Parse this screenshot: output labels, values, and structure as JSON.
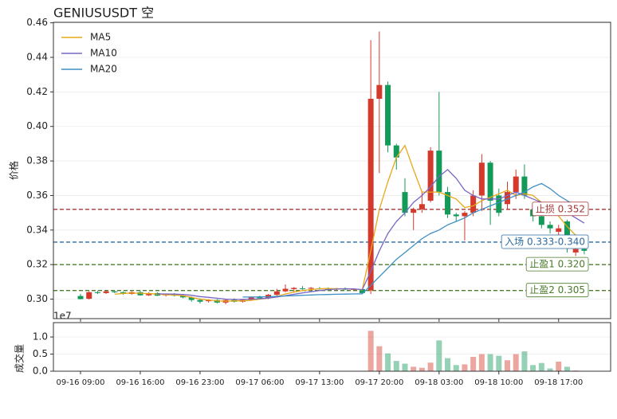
{
  "chart_data": {
    "type": "candlestick",
    "title": "GENIUSUSDT  空",
    "y_label": "价格",
    "volume_label": "成交量",
    "volume_offset_label": "1e7",
    "up_color": "#d33a2c",
    "down_color": "#139a58",
    "grid": true,
    "legend_position": "upper left",
    "categories": [
      "09-16 09:00",
      null,
      null,
      null,
      null,
      null,
      null,
      "09-16 16:00",
      null,
      null,
      null,
      null,
      null,
      null,
      "09-16 23:00",
      null,
      null,
      null,
      null,
      null,
      null,
      "09-17 06:00",
      null,
      null,
      null,
      null,
      null,
      null,
      "09-17 13:00",
      null,
      null,
      null,
      null,
      null,
      null,
      "09-17 20:00",
      null,
      null,
      null,
      null,
      null,
      null,
      "09-18 03:00",
      null,
      null,
      null,
      null,
      null,
      null,
      "09-18 10:00",
      null,
      null,
      null,
      null,
      null,
      null,
      "09-18 17:00",
      null,
      null,
      null
    ],
    "open": [
      0.3018,
      0.3002,
      0.304,
      0.3035,
      0.3045,
      0.304,
      0.303,
      0.304,
      0.3022,
      0.3035,
      0.3022,
      0.303,
      0.302,
      0.301,
      0.2995,
      0.2988,
      0.2995,
      0.298,
      0.2995,
      0.2985,
      0.2995,
      0.301,
      0.3005,
      0.3025,
      0.3045,
      0.3058,
      0.3062,
      0.306,
      0.3062,
      0.306,
      0.3058,
      0.306,
      0.3055,
      0.3058,
      0.305,
      0.416,
      0.424,
      0.389,
      0.362,
      0.35,
      0.352,
      0.357,
      0.386,
      0.362,
      0.349,
      0.348,
      0.35,
      0.36,
      0.379,
      0.36,
      0.355,
      0.362,
      0.371,
      0.352,
      0.348,
      0.343,
      0.339,
      0.345,
      0.327,
      0.329
    ],
    "high": [
      0.303,
      0.3045,
      0.3048,
      0.305,
      0.305,
      0.3045,
      0.3045,
      0.3048,
      0.304,
      0.304,
      0.3032,
      0.3035,
      0.3025,
      0.3015,
      0.3005,
      0.3,
      0.3,
      0.3,
      0.3005,
      0.3,
      0.3015,
      0.302,
      0.303,
      0.306,
      0.3085,
      0.307,
      0.3075,
      0.307,
      0.307,
      0.3068,
      0.3065,
      0.3068,
      0.3062,
      0.306,
      0.45,
      0.455,
      0.426,
      0.39,
      0.37,
      0.353,
      0.362,
      0.388,
      0.42,
      0.365,
      0.35,
      0.351,
      0.363,
      0.384,
      0.38,
      0.364,
      0.368,
      0.375,
      0.378,
      0.356,
      0.35,
      0.345,
      0.343,
      0.346,
      0.331,
      0.33
    ],
    "low": [
      0.2998,
      0.2998,
      0.303,
      0.303,
      0.3035,
      0.3025,
      0.3025,
      0.302,
      0.3018,
      0.3018,
      0.3015,
      0.3015,
      0.3005,
      0.2985,
      0.2975,
      0.298,
      0.2975,
      0.297,
      0.298,
      0.298,
      0.299,
      0.3,
      0.3,
      0.3015,
      0.304,
      0.304,
      0.3055,
      0.305,
      0.3055,
      0.3052,
      0.305,
      0.3052,
      0.305,
      0.303,
      0.303,
      0.373,
      0.385,
      0.375,
      0.348,
      0.34,
      0.35,
      0.356,
      0.36,
      0.347,
      0.345,
      0.334,
      0.348,
      0.351,
      0.343,
      0.348,
      0.352,
      0.358,
      0.358,
      0.345,
      0.341,
      0.338,
      0.336,
      0.327,
      0.325,
      0.326
    ],
    "close": [
      0.3,
      0.304,
      0.3035,
      0.3045,
      0.304,
      0.303,
      0.304,
      0.3022,
      0.3035,
      0.302,
      0.303,
      0.302,
      0.301,
      0.2995,
      0.2985,
      0.2995,
      0.298,
      0.2995,
      0.2985,
      0.2995,
      0.301,
      0.3005,
      0.3025,
      0.3045,
      0.306,
      0.3065,
      0.306,
      0.3065,
      0.306,
      0.3058,
      0.306,
      0.3055,
      0.3058,
      0.3035,
      0.416,
      0.424,
      0.389,
      0.382,
      0.35,
      0.352,
      0.355,
      0.386,
      0.362,
      0.349,
      0.348,
      0.35,
      0.36,
      0.379,
      0.357,
      0.35,
      0.362,
      0.371,
      0.36,
      0.348,
      0.343,
      0.341,
      0.341,
      0.331,
      0.329,
      0.328
    ],
    "volume": [
      0.006,
      0.005,
      0.004,
      0.004,
      0.005,
      0.004,
      0.004,
      0.005,
      0.004,
      0.004,
      0.004,
      0.004,
      0.005,
      0.006,
      0.006,
      0.005,
      0.005,
      0.005,
      0.004,
      0.004,
      0.005,
      0.004,
      0.005,
      0.007,
      0.008,
      0.006,
      0.005,
      0.004,
      0.004,
      0.004,
      0.004,
      0.004,
      0.004,
      0.006,
      1.18,
      0.73,
      0.52,
      0.3,
      0.22,
      0.13,
      0.1,
      0.25,
      0.9,
      0.38,
      0.18,
      0.2,
      0.42,
      0.5,
      0.5,
      0.45,
      0.32,
      0.5,
      0.58,
      0.18,
      0.24,
      0.08,
      0.28,
      0.13,
      0.02,
      0.01
    ],
    "series": [
      {
        "name": "MA5",
        "color": "#e6a817",
        "values": [
          null,
          null,
          null,
          null,
          0.3028,
          0.3033,
          0.3035,
          0.3034,
          0.3032,
          0.3029,
          0.3025,
          0.3024,
          0.302,
          0.301,
          0.3,
          0.2995,
          0.299,
          0.2988,
          0.299,
          0.299,
          0.2993,
          0.3,
          0.3005,
          0.3015,
          0.303,
          0.304,
          0.305,
          0.3055,
          0.306,
          0.3062,
          0.306,
          0.306,
          0.3058,
          0.3053,
          0.328,
          0.352,
          0.368,
          0.382,
          0.389,
          0.375,
          0.362,
          0.362,
          0.362,
          0.36,
          0.358,
          0.353,
          0.354,
          0.357,
          0.359,
          0.361,
          0.363,
          0.36,
          0.361,
          0.36,
          0.356,
          0.352,
          0.348,
          0.342,
          0.337,
          0.334
        ]
      },
      {
        "name": "MA10",
        "color": "#7866c6",
        "values": [
          null,
          null,
          null,
          null,
          null,
          null,
          null,
          null,
          null,
          0.303,
          0.303,
          0.3029,
          0.3027,
          0.3022,
          0.3015,
          0.301,
          0.3005,
          0.3,
          0.2998,
          0.2998,
          0.3,
          0.3002,
          0.3006,
          0.3012,
          0.302,
          0.3028,
          0.3036,
          0.3043,
          0.305,
          0.3055,
          0.3058,
          0.306,
          0.3059,
          0.3055,
          0.316,
          0.328,
          0.338,
          0.345,
          0.35,
          0.356,
          0.36,
          0.365,
          0.371,
          0.375,
          0.37,
          0.363,
          0.36,
          0.358,
          0.358,
          0.358,
          0.36,
          0.362,
          0.36,
          0.358,
          0.356,
          0.354,
          0.352,
          0.35,
          0.347,
          0.344
        ]
      },
      {
        "name": "MA20",
        "color": "#3d8fc6",
        "values": [
          null,
          null,
          null,
          null,
          null,
          null,
          null,
          null,
          null,
          null,
          null,
          null,
          null,
          null,
          null,
          null,
          null,
          null,
          null,
          0.3012,
          0.3012,
          0.3013,
          0.3014,
          0.3016,
          0.3018,
          0.302,
          0.3022,
          0.3024,
          0.3026,
          0.3027,
          0.3028,
          0.3029,
          0.303,
          0.3031,
          0.308,
          0.313,
          0.318,
          0.323,
          0.327,
          0.331,
          0.335,
          0.338,
          0.34,
          0.343,
          0.345,
          0.347,
          0.35,
          0.352,
          0.354,
          0.356,
          0.358,
          0.36,
          0.362,
          0.365,
          0.367,
          0.364,
          0.36,
          0.357,
          0.354,
          0.351
        ]
      }
    ],
    "levels": [
      {
        "label": "止损 0.352",
        "value": 0.352,
        "color": "#a83636"
      },
      {
        "label": "入场 0.333-0.340",
        "value": 0.333,
        "color": "#2c6aa0"
      },
      {
        "label": "止盈1 0.320",
        "value": 0.32,
        "color": "#4b7a2a"
      },
      {
        "label": "止盈2 0.305",
        "value": 0.305,
        "color": "#4b7a2a"
      }
    ],
    "ylim": [
      0.2887,
      0.4603
    ],
    "yticks": [
      {
        "value": 0.3,
        "label": "0.30"
      },
      0.32,
      0.34,
      0.36,
      0.38,
      {
        "value": 0.4,
        "label": "0.40"
      },
      0.42,
      0.44,
      0.46
    ],
    "volume_ylim": [
      0,
      1.42
    ],
    "volume_yticks": [
      {
        "value": 0,
        "label": "0.0"
      },
      0.5,
      {
        "value": 1,
        "label": "1.0"
      }
    ]
  }
}
